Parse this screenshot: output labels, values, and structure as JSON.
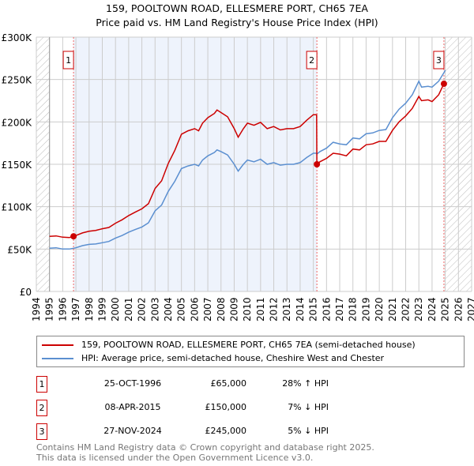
{
  "chart_data": {
    "type": "line",
    "title": "159, POOLTOWN ROAD, ELLESMERE PORT, CH65 7EA",
    "subtitle": "Price paid vs. HM Land Registry's House Price Index (HPI)",
    "xlim": [
      1994,
      2027
    ],
    "ylim": [
      0,
      300000
    ],
    "yticks": [
      0,
      50000,
      100000,
      150000,
      200000,
      250000,
      300000
    ],
    "ytick_labels": [
      "£0",
      "£50K",
      "£100K",
      "£150K",
      "£200K",
      "£250K",
      "£300K"
    ],
    "xticks": [
      "1994",
      "1995",
      "1996",
      "1997",
      "1998",
      "1999",
      "2000",
      "2001",
      "2002",
      "2003",
      "2004",
      "2005",
      "2006",
      "2007",
      "2008",
      "2009",
      "2010",
      "2011",
      "2012",
      "2013",
      "2014",
      "2015",
      "2016",
      "2017",
      "2018",
      "2019",
      "2020",
      "2021",
      "2022",
      "2023",
      "2024",
      "2025",
      "2026",
      "2027"
    ],
    "grid": true,
    "series": [
      {
        "name": "159, POOLTOWN ROAD, ELLESMERE PORT, CH65 7EA (semi-detached house)",
        "color": "#cc0000",
        "x": [
          1995.0,
          1995.5,
          1996.0,
          1996.5,
          1996.82,
          1997.0,
          1997.5,
          1998.0,
          1998.5,
          1999.0,
          1999.5,
          2000.0,
          2000.5,
          2001.0,
          2001.5,
          2002.0,
          2002.5,
          2003.0,
          2003.5,
          2004.0,
          2004.5,
          2005.0,
          2005.5,
          2006.0,
          2006.3,
          2006.6,
          2007.0,
          2007.5,
          2007.7,
          2008.0,
          2008.5,
          2009.0,
          2009.3,
          2009.7,
          2010.0,
          2010.5,
          2011.0,
          2011.5,
          2012.0,
          2012.5,
          2013.0,
          2013.5,
          2014.0,
          2014.5,
          2015.0,
          2015.25,
          2015.27,
          2015.5,
          2016.0,
          2016.5,
          2017.0,
          2017.5,
          2018.0,
          2018.5,
          2019.0,
          2019.5,
          2020.0,
          2020.5,
          2021.0,
          2021.5,
          2022.0,
          2022.5,
          2023.0,
          2023.2,
          2023.7,
          2024.0,
          2024.5,
          2024.9
        ],
        "y": [
          65000,
          65500,
          64000,
          63500,
          65000,
          66000,
          69000,
          71000,
          72000,
          74000,
          75500,
          80500,
          84500,
          89500,
          93500,
          97500,
          103500,
          121500,
          130500,
          151000,
          166500,
          185500,
          189500,
          192000,
          189500,
          198500,
          205000,
          210000,
          214000,
          211000,
          206000,
          192000,
          182000,
          192000,
          198500,
          196000,
          199500,
          192000,
          194500,
          190500,
          192000,
          192000,
          194500,
          202000,
          208500,
          208500,
          150000,
          153000,
          157000,
          163000,
          162000,
          160000,
          168000,
          167000,
          173000,
          174000,
          177000,
          177000,
          190000,
          200000,
          207000,
          216000,
          230000,
          225000,
          226000,
          224000,
          232000,
          245000
        ]
      },
      {
        "name": "HPI: Average price, semi-detached house, Cheshire West and Chester",
        "color": "#5b8fd0",
        "x": [
          1995.0,
          1995.5,
          1996.0,
          1996.5,
          1996.82,
          1997.0,
          1997.5,
          1998.0,
          1998.5,
          1999.0,
          1999.5,
          2000.0,
          2000.5,
          2001.0,
          2001.5,
          2002.0,
          2002.5,
          2003.0,
          2003.5,
          2004.0,
          2004.5,
          2005.0,
          2005.5,
          2006.0,
          2006.3,
          2006.6,
          2007.0,
          2007.5,
          2007.7,
          2008.0,
          2008.5,
          2009.0,
          2009.3,
          2009.7,
          2010.0,
          2010.5,
          2011.0,
          2011.5,
          2012.0,
          2012.5,
          2013.0,
          2013.5,
          2014.0,
          2014.5,
          2015.0,
          2015.25,
          2015.27,
          2015.5,
          2016.0,
          2016.5,
          2017.0,
          2017.5,
          2018.0,
          2018.5,
          2019.0,
          2019.5,
          2020.0,
          2020.5,
          2021.0,
          2021.5,
          2022.0,
          2022.5,
          2023.0,
          2023.2,
          2023.7,
          2024.0,
          2024.5,
          2024.9,
          2025.0
        ],
        "y": [
          51000,
          51500,
          50000,
          50000,
          51000,
          51500,
          54000,
          55500,
          56000,
          57500,
          59000,
          63000,
          66000,
          70000,
          73000,
          76000,
          81000,
          95000,
          102000,
          118000,
          130000,
          145000,
          148000,
          150000,
          148000,
          155000,
          160000,
          164000,
          167000,
          165000,
          161000,
          150000,
          142000,
          150000,
          155000,
          153000,
          156000,
          150000,
          152000,
          149000,
          150000,
          150000,
          152000,
          158000,
          163000,
          163000,
          162000,
          165000,
          169000,
          176000,
          174000,
          173000,
          181000,
          180000,
          186000,
          187000,
          190000,
          191000,
          205000,
          215000,
          222000,
          232000,
          248000,
          241000,
          242000,
          241000,
          248000,
          258000,
          261000
        ]
      }
    ],
    "sales": [
      {
        "num": "1",
        "x": 1996.82,
        "y": 65000
      },
      {
        "num": "2",
        "x": 2015.27,
        "y": 150000
      },
      {
        "num": "3",
        "x": 2024.9,
        "y": 245000
      }
    ],
    "legend": "below"
  },
  "legend": {
    "property": "159, POOLTOWN ROAD, ELLESMERE PORT, CH65 7EA (semi-detached house)",
    "hpi": "HPI: Average price, semi-detached house, Cheshire West and Chester"
  },
  "table": [
    {
      "num": "1",
      "date": "25-OCT-1996",
      "price": "£65,000",
      "hpi": "28% ↑ HPI"
    },
    {
      "num": "2",
      "date": "08-APR-2015",
      "price": "£150,000",
      "hpi": "7% ↓ HPI"
    },
    {
      "num": "3",
      "date": "27-NOV-2024",
      "price": "£245,000",
      "hpi": "5% ↓ HPI"
    }
  ],
  "footer": {
    "line1": "Contains HM Land Registry data © Crown copyright and database right 2025.",
    "line2": "This data is licensed under the Open Government Licence v3.0."
  },
  "colors": {
    "property": "#cc0000",
    "hpi": "#5b8fd0",
    "band": "#eef3fc"
  }
}
